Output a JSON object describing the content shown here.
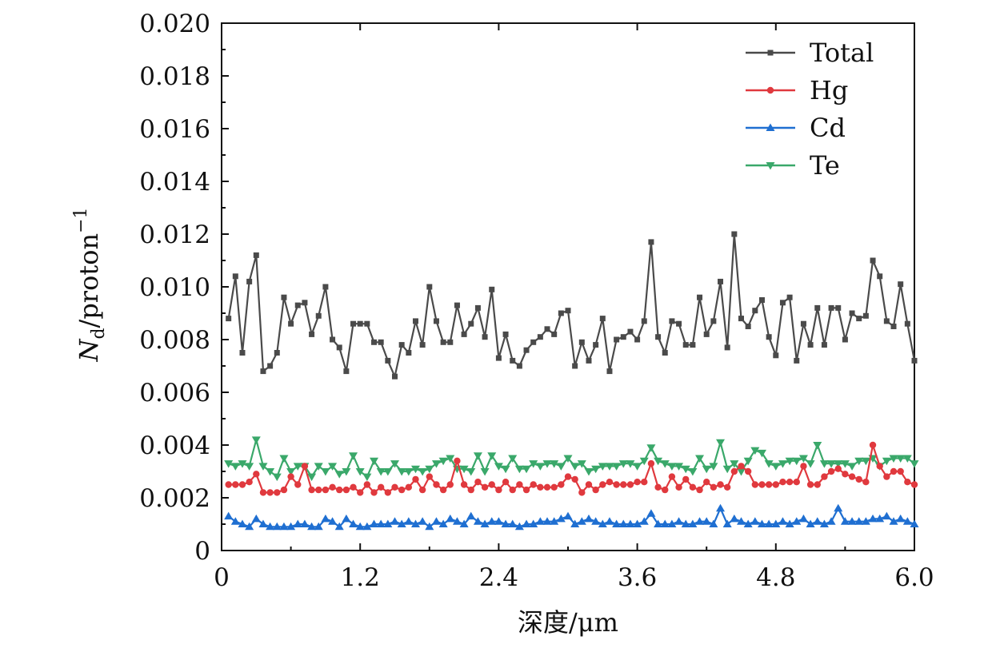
{
  "chart_data": {
    "type": "line",
    "xlabel": "深度/μm",
    "ylabel": {
      "main": "N",
      "sub": "d",
      "rest": "/proton",
      "sup": "−1"
    },
    "xlim": [
      0,
      6.0
    ],
    "ylim": [
      0,
      0.02
    ],
    "x_ticks": [
      "0",
      "1.2",
      "2.4",
      "3.6",
      "4.8",
      "6.0"
    ],
    "x_tick_values": [
      0,
      1.2,
      2.4,
      3.6,
      4.8,
      6.0
    ],
    "y_ticks": [
      "0",
      "0.002",
      "0.004",
      "0.006",
      "0.008",
      "0.010",
      "0.012",
      "0.014",
      "0.016",
      "0.018",
      "0.020"
    ],
    "y_tick_values": [
      0,
      0.002,
      0.004,
      0.006,
      0.008,
      0.01,
      0.012,
      0.014,
      0.016,
      0.018,
      0.02
    ],
    "grid": false,
    "legend_position": "top-right",
    "x_start": 0.06,
    "x_step": 0.06,
    "series": [
      {
        "name": "Total",
        "color": "#4a4a4a",
        "marker": "square",
        "values": [
          0.0088,
          0.0104,
          0.0075,
          0.0102,
          0.0112,
          0.0068,
          0.007,
          0.0075,
          0.0096,
          0.0086,
          0.0093,
          0.0094,
          0.0082,
          0.0089,
          0.01,
          0.008,
          0.0077,
          0.0068,
          0.0086,
          0.0086,
          0.0086,
          0.0079,
          0.0079,
          0.0072,
          0.0066,
          0.0078,
          0.0075,
          0.0087,
          0.0078,
          0.01,
          0.0087,
          0.0079,
          0.0079,
          0.0093,
          0.0082,
          0.0086,
          0.0092,
          0.0081,
          0.0099,
          0.0073,
          0.0082,
          0.0072,
          0.007,
          0.0076,
          0.0079,
          0.0081,
          0.0084,
          0.0082,
          0.009,
          0.0091,
          0.007,
          0.0079,
          0.0072,
          0.0078,
          0.0088,
          0.0068,
          0.008,
          0.0081,
          0.0083,
          0.008,
          0.0087,
          0.0117,
          0.0081,
          0.0075,
          0.0087,
          0.0086,
          0.0078,
          0.0078,
          0.0096,
          0.0082,
          0.0087,
          0.0102,
          0.0077,
          0.012,
          0.0088,
          0.0085,
          0.0091,
          0.0095,
          0.0081,
          0.0074,
          0.0094,
          0.0096,
          0.0072,
          0.0086,
          0.0078,
          0.0092,
          0.0078,
          0.0092,
          0.0092,
          0.008,
          0.009,
          0.0088,
          0.0089,
          0.011,
          0.0104,
          0.0087,
          0.0085,
          0.0101,
          0.0086,
          0.0072
        ]
      },
      {
        "name": "Hg",
        "color": "#e0393e",
        "marker": "circle",
        "values": [
          0.0025,
          0.0025,
          0.0025,
          0.0026,
          0.0029,
          0.0022,
          0.0022,
          0.0022,
          0.0023,
          0.0028,
          0.0025,
          0.0032,
          0.0023,
          0.0023,
          0.0023,
          0.0024,
          0.0023,
          0.0023,
          0.0024,
          0.0022,
          0.0025,
          0.0022,
          0.0024,
          0.0022,
          0.0024,
          0.0023,
          0.0024,
          0.0027,
          0.0023,
          0.0028,
          0.0025,
          0.0023,
          0.0025,
          0.0034,
          0.0025,
          0.0023,
          0.0026,
          0.0024,
          0.0025,
          0.0023,
          0.0026,
          0.0023,
          0.0025,
          0.0023,
          0.0025,
          0.0024,
          0.0024,
          0.0024,
          0.0025,
          0.0028,
          0.0027,
          0.0022,
          0.0025,
          0.0023,
          0.0025,
          0.0026,
          0.0025,
          0.0025,
          0.0025,
          0.0026,
          0.0026,
          0.0033,
          0.0024,
          0.0023,
          0.0028,
          0.0024,
          0.0027,
          0.0024,
          0.0023,
          0.0026,
          0.0024,
          0.0025,
          0.0024,
          0.003,
          0.0032,
          0.003,
          0.0025,
          0.0025,
          0.0025,
          0.0025,
          0.0026,
          0.0026,
          0.0026,
          0.0032,
          0.0025,
          0.0025,
          0.0028,
          0.003,
          0.0031,
          0.0029,
          0.0028,
          0.0027,
          0.0026,
          0.004,
          0.0032,
          0.0028,
          0.003,
          0.003,
          0.0026,
          0.0025
        ]
      },
      {
        "name": "Cd",
        "color": "#1f6fd1",
        "marker": "triangle-up",
        "values": [
          0.0013,
          0.0011,
          0.001,
          0.0009,
          0.0012,
          0.001,
          0.0009,
          0.0009,
          0.0009,
          0.0009,
          0.001,
          0.001,
          0.0009,
          0.0009,
          0.0012,
          0.0011,
          0.0009,
          0.0012,
          0.001,
          0.0009,
          0.0009,
          0.001,
          0.001,
          0.001,
          0.0011,
          0.001,
          0.0011,
          0.001,
          0.0011,
          0.0009,
          0.0011,
          0.001,
          0.0012,
          0.0011,
          0.001,
          0.0013,
          0.0011,
          0.001,
          0.0011,
          0.0011,
          0.001,
          0.001,
          0.0009,
          0.001,
          0.001,
          0.0011,
          0.0011,
          0.0011,
          0.0012,
          0.0013,
          0.001,
          0.0011,
          0.0012,
          0.0011,
          0.001,
          0.0011,
          0.001,
          0.001,
          0.001,
          0.001,
          0.0011,
          0.0014,
          0.001,
          0.001,
          0.001,
          0.0011,
          0.001,
          0.001,
          0.0011,
          0.0011,
          0.001,
          0.0016,
          0.001,
          0.0012,
          0.0011,
          0.001,
          0.0011,
          0.001,
          0.001,
          0.001,
          0.0011,
          0.001,
          0.0011,
          0.0012,
          0.001,
          0.0011,
          0.001,
          0.0011,
          0.0016,
          0.0011,
          0.0011,
          0.0011,
          0.0011,
          0.0012,
          0.0012,
          0.0013,
          0.0011,
          0.0012,
          0.0011,
          0.001
        ]
      },
      {
        "name": "Te",
        "color": "#3aa86a",
        "marker": "triangle-down",
        "values": [
          0.0033,
          0.0032,
          0.0033,
          0.0032,
          0.0042,
          0.0032,
          0.003,
          0.0028,
          0.0035,
          0.003,
          0.0032,
          0.0032,
          0.0028,
          0.0032,
          0.003,
          0.0032,
          0.0029,
          0.003,
          0.0036,
          0.003,
          0.0028,
          0.0034,
          0.003,
          0.003,
          0.0033,
          0.003,
          0.003,
          0.0031,
          0.003,
          0.0031,
          0.0033,
          0.0034,
          0.0035,
          0.0031,
          0.0031,
          0.003,
          0.0036,
          0.003,
          0.0036,
          0.0032,
          0.0031,
          0.0035,
          0.0031,
          0.0031,
          0.0033,
          0.0032,
          0.0033,
          0.0033,
          0.0032,
          0.0035,
          0.0032,
          0.0033,
          0.003,
          0.0031,
          0.0032,
          0.0032,
          0.0032,
          0.0033,
          0.0033,
          0.0032,
          0.0034,
          0.0039,
          0.0034,
          0.0033,
          0.0032,
          0.0032,
          0.0031,
          0.003,
          0.0035,
          0.0031,
          0.0032,
          0.0041,
          0.0031,
          0.0033,
          0.003,
          0.0034,
          0.0038,
          0.0037,
          0.0033,
          0.0032,
          0.0033,
          0.0034,
          0.0034,
          0.0035,
          0.0033,
          0.004,
          0.0033,
          0.0033,
          0.0033,
          0.0033,
          0.0032,
          0.0034,
          0.0034,
          0.0035,
          0.0032,
          0.0034,
          0.0035,
          0.0035,
          0.0035,
          0.0033
        ]
      }
    ]
  }
}
